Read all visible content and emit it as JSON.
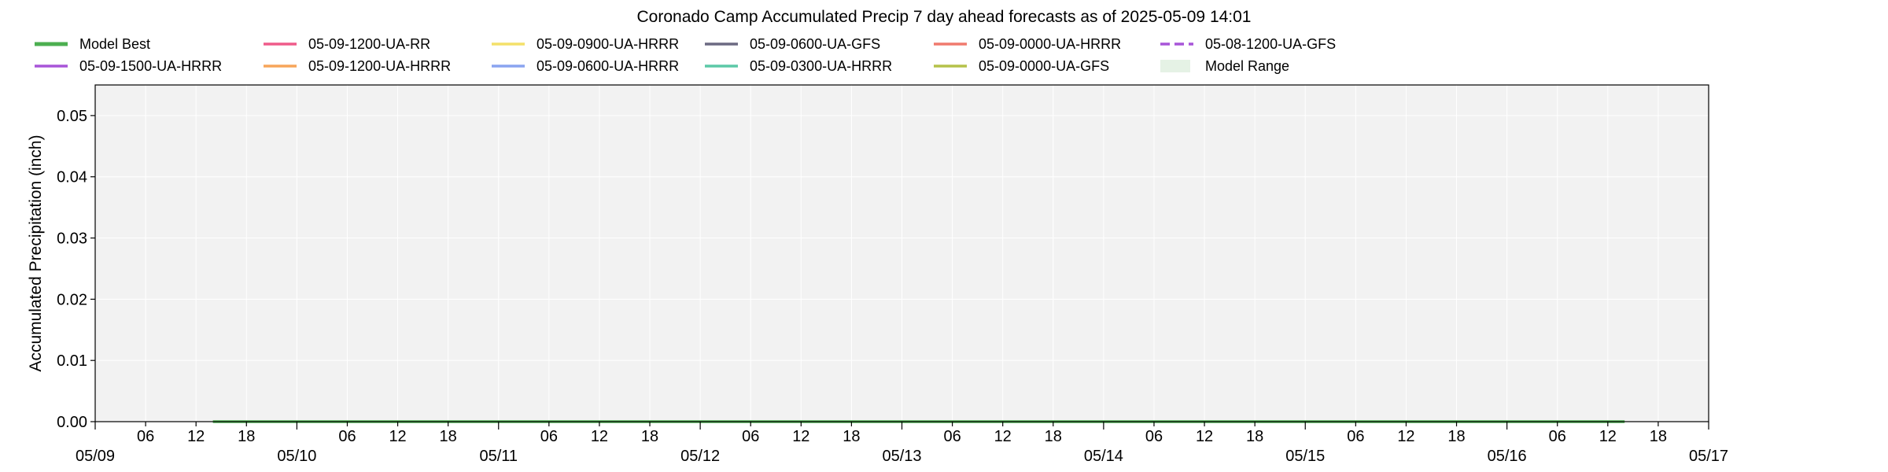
{
  "chart_data": {
    "type": "line",
    "title": "Coronado Camp Accumulated Precip 7 day ahead forecasts as of 2025-05-09 14:01",
    "xlabel": "",
    "ylabel": "Accumulated Precipitation (inch)",
    "ylim": [
      0.0,
      0.055
    ],
    "xlim": [
      "2025-05-09 00:00",
      "2025-05-17 00:00"
    ],
    "yticks": [
      "0.00",
      "0.01",
      "0.02",
      "0.03",
      "0.04",
      "0.05"
    ],
    "x_minor_tick_labels": [
      "06",
      "12",
      "18"
    ],
    "x_major_tick_labels": [
      "05/09",
      "05/10",
      "05/11",
      "05/12",
      "05/13",
      "05/14",
      "05/15",
      "05/16",
      "05/17"
    ],
    "grid": true,
    "legend_position": "top",
    "legend": [
      {
        "name": "Model Best",
        "color": "#4caf50",
        "style": "solid-thick"
      },
      {
        "name": "05-09-1500-UA-HRRR",
        "color": "#a855d8",
        "style": "solid"
      },
      {
        "name": "05-09-1200-UA-RR",
        "color": "#ef5b8a",
        "style": "solid"
      },
      {
        "name": "05-09-1200-UA-HRRR",
        "color": "#f7a55a",
        "style": "solid"
      },
      {
        "name": "05-09-0900-UA-HRRR",
        "color": "#f4e06a",
        "style": "solid"
      },
      {
        "name": "05-09-0600-UA-HRRR",
        "color": "#8aa4f0",
        "style": "solid"
      },
      {
        "name": "05-09-0600-UA-GFS",
        "color": "#6c6a82",
        "style": "solid"
      },
      {
        "name": "05-09-0300-UA-HRRR",
        "color": "#5cc9a7",
        "style": "solid"
      },
      {
        "name": "05-09-0000-UA-HRRR",
        "color": "#f07a6e",
        "style": "solid"
      },
      {
        "name": "05-09-0000-UA-GFS",
        "color": "#b5c24a",
        "style": "solid"
      },
      {
        "name": "05-08-1200-UA-GFS",
        "color": "#a855d8",
        "style": "dashed"
      },
      {
        "name": "Model Range",
        "color": "#e5f2e5",
        "style": "patch"
      }
    ],
    "series": [
      {
        "name": "Model Best",
        "color": "#4caf50",
        "x": [
          "2025-05-09 14:00",
          "2025-05-16 14:00"
        ],
        "y": [
          0.0,
          0.0
        ]
      }
    ]
  }
}
